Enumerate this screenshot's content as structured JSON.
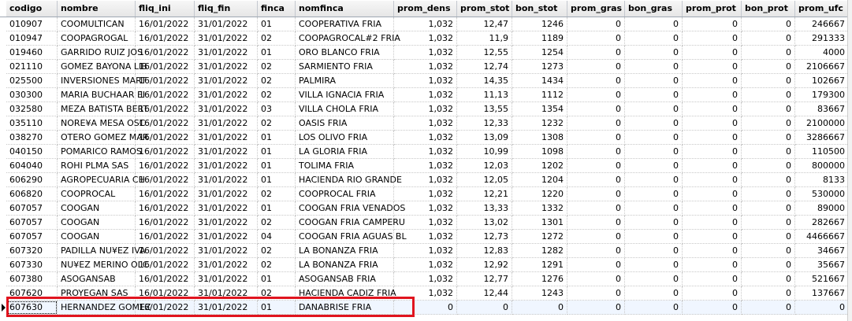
{
  "columns": [
    "codigo",
    "nombre",
    "fliq_ini",
    "fliq_fin",
    "finca",
    "nomfinca",
    "prom_dens",
    "prom_stot",
    "bon_stot",
    "prom_gras",
    "bon_gras",
    "prom_prot",
    "bon_prot",
    "prom_ufc"
  ],
  "rows": [
    [
      "010907",
      "COOMULTICAN",
      "16/01/2022",
      "31/01/2022",
      "01",
      "COOPERATIVA FRIA",
      "1,032",
      "12,47",
      "1246",
      "0",
      "0",
      "0",
      "0",
      "246667"
    ],
    [
      "010947",
      "COOPAGROGAL",
      "16/01/2022",
      "31/01/2022",
      "02",
      "COOPAGROCAL#2 FRIA",
      "1,032",
      "11,9",
      "1189",
      "0",
      "0",
      "0",
      "0",
      "291333"
    ],
    [
      "019460",
      "GARRIDO RUIZ JOS",
      "16/01/2022",
      "31/01/2022",
      "01",
      "ORO BLANCO FRIA",
      "1,032",
      "12,55",
      "1254",
      "0",
      "0",
      "0",
      "0",
      "4000"
    ],
    [
      "021110",
      "GOMEZ BAYONA LIB",
      "16/01/2022",
      "31/01/2022",
      "02",
      "SARMIENTO FRIA",
      "1,032",
      "12,74",
      "1273",
      "0",
      "0",
      "0",
      "0",
      "2106667"
    ],
    [
      "025500",
      "INVERSIONES MART",
      "16/01/2022",
      "31/01/2022",
      "02",
      "PALMIRA",
      "1,032",
      "14,35",
      "1434",
      "0",
      "0",
      "0",
      "0",
      "102667"
    ],
    [
      "030300",
      "MARIA BUCHAAR EI",
      "16/01/2022",
      "31/01/2022",
      "02",
      "VILLA IGNACIA FRIA",
      "1,032",
      "11,13",
      "1112",
      "0",
      "0",
      "0",
      "0",
      "179300"
    ],
    [
      "032580",
      "MEZA BATISTA BERT",
      "16/01/2022",
      "31/01/2022",
      "03",
      "VILLA CHOLA FRIA",
      "1,032",
      "13,55",
      "1354",
      "0",
      "0",
      "0",
      "0",
      "83667"
    ],
    [
      "035110",
      "NORE¥A MESA OSC",
      "16/01/2022",
      "31/01/2022",
      "02",
      "OASIS FRIA",
      "1,032",
      "12,33",
      "1232",
      "0",
      "0",
      "0",
      "0",
      "2100000"
    ],
    [
      "038270",
      "OTERO GOMEZ MAR",
      "16/01/2022",
      "31/01/2022",
      "01",
      "LOS OLIVO FRIA",
      "1,032",
      "13,09",
      "1308",
      "0",
      "0",
      "0",
      "0",
      "3286667"
    ],
    [
      "040150",
      "POMARICO RAMOS",
      "16/01/2022",
      "31/01/2022",
      "01",
      "LA GLORIA FRIA",
      "1,032",
      "10,99",
      "1098",
      "0",
      "0",
      "0",
      "0",
      "110500"
    ],
    [
      "604040",
      "ROHI PLMA SAS",
      "16/01/2022",
      "31/01/2022",
      "01",
      "TOLIMA FRIA",
      "1,032",
      "12,03",
      "1202",
      "0",
      "0",
      "0",
      "0",
      "800000"
    ],
    [
      "606290",
      "AGROPECUARIA CH",
      "16/01/2022",
      "31/01/2022",
      "01",
      "HACIENDA RIO GRANDE",
      "1,032",
      "12,05",
      "1204",
      "0",
      "0",
      "0",
      "0",
      "8133"
    ],
    [
      "606820",
      "COOPROCAL",
      "16/01/2022",
      "31/01/2022",
      "02",
      "COOPROCAL FRIA",
      "1,032",
      "12,21",
      "1220",
      "0",
      "0",
      "0",
      "0",
      "530000"
    ],
    [
      "607057",
      "COOGAN",
      "16/01/2022",
      "31/01/2022",
      "01",
      "COOGAN FRIA VENADOS",
      "1,032",
      "13,33",
      "1332",
      "0",
      "0",
      "0",
      "0",
      "89000"
    ],
    [
      "607057",
      "COOGAN",
      "16/01/2022",
      "31/01/2022",
      "02",
      "COOGAN FRIA CAMPERU",
      "1,032",
      "13,02",
      "1301",
      "0",
      "0",
      "0",
      "0",
      "282667"
    ],
    [
      "607057",
      "COOGAN",
      "16/01/2022",
      "31/01/2022",
      "04",
      "COOGAN FRIA AGUAS BL",
      "1,032",
      "12,73",
      "1272",
      "0",
      "0",
      "0",
      "0",
      "4466667"
    ],
    [
      "607320",
      "PADILLA NU¥EZ IVA",
      "16/01/2022",
      "31/01/2022",
      "02",
      "LA BONANZA FRIA",
      "1,032",
      "12,83",
      "1282",
      "0",
      "0",
      "0",
      "0",
      "34667"
    ],
    [
      "607330",
      "NU¥EZ MERINO OLC",
      "16/01/2022",
      "31/01/2022",
      "02",
      "LA BONANZA FRIA",
      "1,032",
      "12,92",
      "1291",
      "0",
      "0",
      "0",
      "0",
      "35667"
    ],
    [
      "607380",
      "ASOGANSAB",
      "16/01/2022",
      "31/01/2022",
      "01",
      "ASOGANSAB FRIA",
      "1,032",
      "12,77",
      "1276",
      "0",
      "0",
      "0",
      "0",
      "521667"
    ],
    [
      "607620",
      "PROYEGAN SAS",
      "16/01/2022",
      "31/01/2022",
      "02",
      "HACIENDA CADIZ FRIA",
      "1,032",
      "12,44",
      "1243",
      "0",
      "0",
      "0",
      "0",
      "137667"
    ],
    [
      "607630",
      "HERNANDEZ GOMEZ",
      "16/01/2022",
      "31/01/2022",
      "01",
      "DANABRISE FRIA",
      "0",
      "0",
      "0",
      "0",
      "0",
      "0",
      "0",
      "0"
    ]
  ],
  "selected_row_index": 20,
  "colors": {
    "highlight_box": "#e0141e",
    "selected_row": "#f0f6ff"
  }
}
